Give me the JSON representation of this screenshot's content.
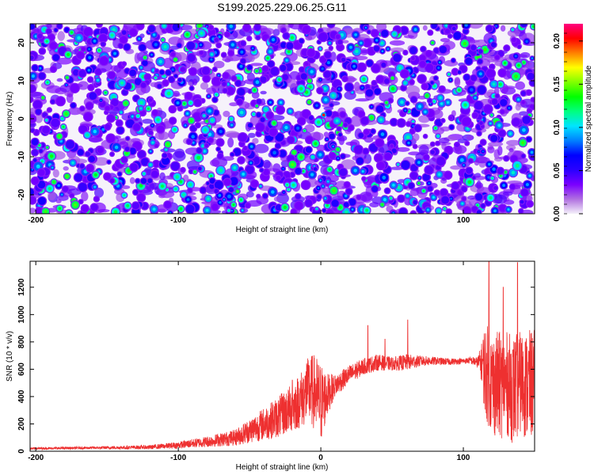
{
  "page_title": "S199.2025.229.06.25.G11",
  "chart_data": [
    {
      "type": "heatmap",
      "title": "S199.2025.229.06.25.G11",
      "xlabel": "Height of straight line (km)",
      "ylabel": "Frequency (Hz)",
      "xlim": [
        -204,
        150
      ],
      "ylim": [
        -25,
        25
      ],
      "xticks": [
        -200,
        -100,
        0,
        100
      ],
      "xtick_labels": [
        "-200",
        "-100",
        "0",
        "100"
      ],
      "yticks": [
        -20,
        -10,
        0,
        10,
        20
      ],
      "ytick_labels": [
        "-20",
        "-10",
        "0",
        "10",
        "20"
      ],
      "colorbar": {
        "label": "Normalized spectral amplitude",
        "range": [
          0,
          0.22
        ],
        "ticks": [
          0.0,
          0.05,
          0.1,
          0.15,
          0.2
        ],
        "tick_labels": [
          "0.00",
          "0.05",
          "0.10",
          "0.15",
          "0.20"
        ],
        "colors": [
          "#f4f0fa",
          "#b070e0",
          "#7a00ff",
          "#2a00ff",
          "#0000ff",
          "#0080ff",
          "#00e5ff",
          "#00ff80",
          "#00ff00",
          "#80ff00",
          "#ffff00",
          "#ff8000",
          "#ff0000",
          "#ff0080"
        ]
      },
      "background_level": 0.02,
      "blob_count": 1400,
      "notes": "Dense noise-like spectral amplitude field; most values 0.02-0.08 with scattered peaks up to ~0.12, isolated maximum near height 0 km, frequency +1 Hz"
    },
    {
      "type": "line",
      "xlabel": "Height of straight line (km)",
      "ylabel": "SNR (10 * v/v)",
      "xlim": [
        -204,
        150
      ],
      "ylim": [
        0,
        1390
      ],
      "xticks": [
        -200,
        -100,
        0,
        100
      ],
      "xtick_labels": [
        "-200",
        "-100",
        "0",
        "100"
      ],
      "yticks": [
        0,
        200,
        400,
        600,
        800,
        1000,
        1200
      ],
      "ytick_labels": [
        "0",
        "200",
        "400",
        "600",
        "800",
        "1000",
        "1200"
      ],
      "series": [
        {
          "name": "SNR",
          "color": "#ee3030",
          "x_range": [
            -204,
            150
          ],
          "envelope": {
            "x": [
              -204,
              -160,
              -120,
              -100,
              -80,
              -60,
              -50,
              -40,
              -30,
              -20,
              -12,
              -8,
              -4,
              0,
              5,
              10,
              20,
              30,
              40,
              50,
              60,
              70,
              80,
              90,
              100,
              105,
              110,
              113,
              115,
              120,
              125,
              130,
              135,
              140,
              145,
              150
            ],
            "center": [
              20,
              25,
              30,
              45,
              70,
              100,
              150,
              200,
              250,
              320,
              400,
              450,
              430,
              350,
              420,
              480,
              560,
              620,
              650,
              640,
              650,
              660,
              660,
              655,
              660,
              665,
              650,
              650,
              600,
              500,
              480,
              500,
              450,
              500,
              480,
              500
            ],
            "spread": [
              8,
              10,
              15,
              25,
              40,
              60,
              90,
              120,
              150,
              180,
              220,
              260,
              280,
              300,
              150,
              80,
              70,
              60,
              60,
              50,
              60,
              40,
              30,
              25,
              20,
              25,
              40,
              150,
              350,
              380,
              400,
              380,
              400,
              380,
              400,
              400
            ]
          },
          "spikes": [
            {
              "x": -20,
              "y": 520
            },
            {
              "x": -10,
              "y": 640
            },
            {
              "x": 33,
              "y": 920
            },
            {
              "x": 45,
              "y": 820
            },
            {
              "x": 61,
              "y": 960
            },
            {
              "x": 118,
              "y": 1390
            },
            {
              "x": 128,
              "y": 1200
            },
            {
              "x": 138,
              "y": 1380
            }
          ]
        }
      ]
    }
  ]
}
